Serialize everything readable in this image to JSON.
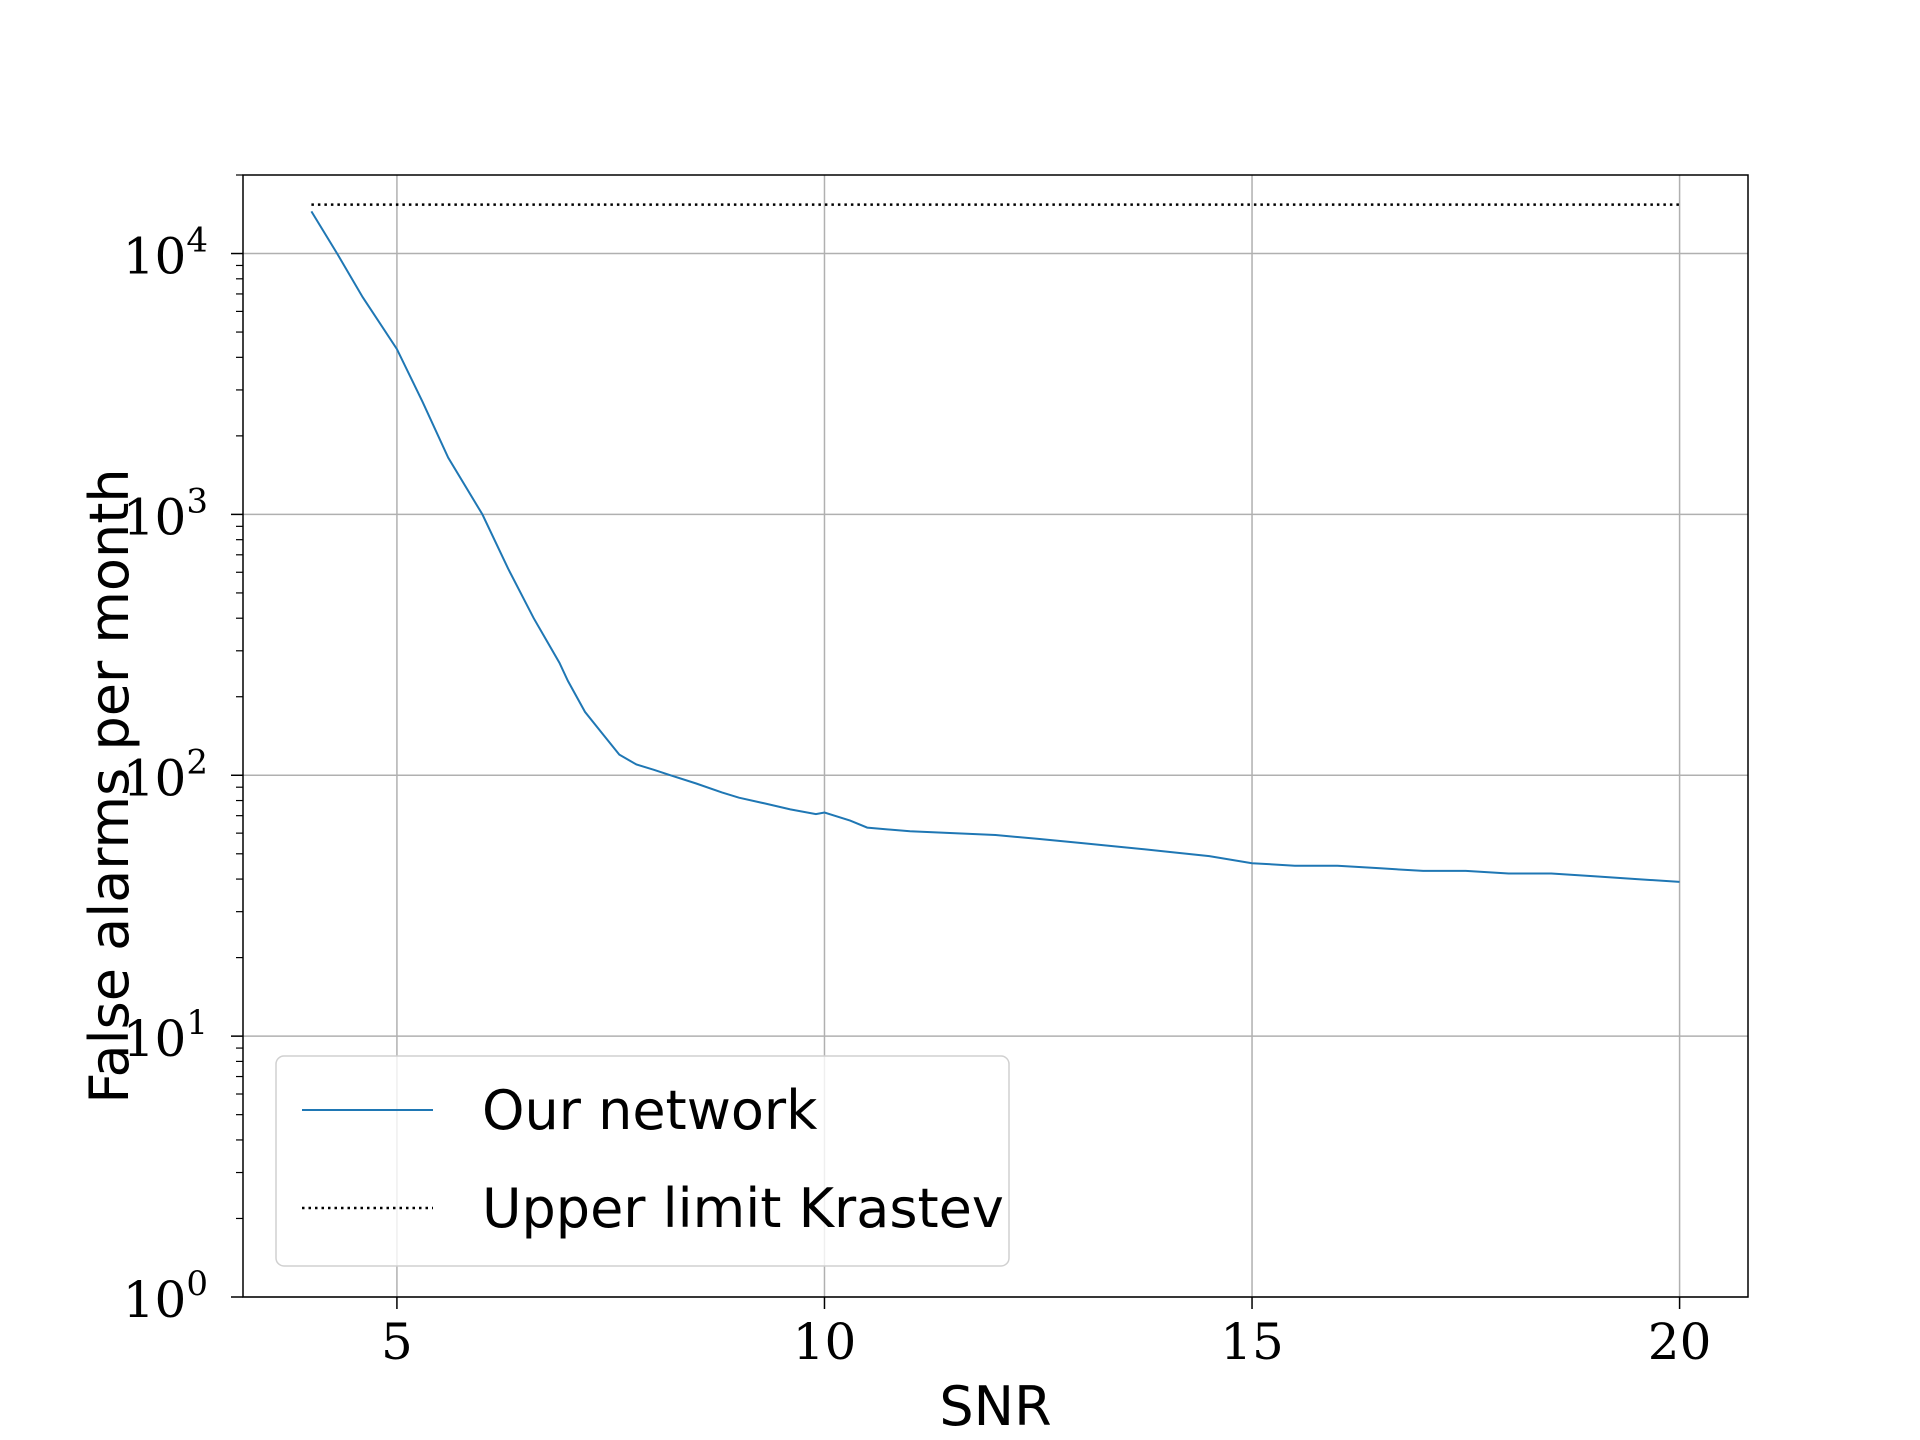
{
  "chart_data": {
    "type": "line",
    "title": "",
    "xlabel": "SNR",
    "ylabel": "False alarms per month",
    "xlim": [
      3.2,
      20.8
    ],
    "ylim": [
      1,
      20000
    ],
    "yscale": "log",
    "xticks": [
      5,
      10,
      15,
      20
    ],
    "xtick_labels": [
      "5",
      "10",
      "15",
      "20"
    ],
    "yticks": [
      1,
      10,
      100,
      1000,
      10000
    ],
    "ytick_base": "10",
    "ytick_exponents": [
      "0",
      "1",
      "2",
      "3",
      "4"
    ],
    "grid": true,
    "legend_position": "lower-left",
    "series": [
      {
        "name": "Our network",
        "color": "#1f77b4",
        "style": "solid",
        "x": [
          4.0,
          4.3,
          4.6,
          5.0,
          5.3,
          5.6,
          6.0,
          6.3,
          6.6,
          6.9,
          7.0,
          7.2,
          7.4,
          7.6,
          7.8,
          8.0,
          8.2,
          8.5,
          8.8,
          9.0,
          9.3,
          9.6,
          9.9,
          10.0,
          10.3,
          10.5,
          11.0,
          11.5,
          12.0,
          12.5,
          13.0,
          13.5,
          14.0,
          14.5,
          15.0,
          15.5,
          16.0,
          16.5,
          17.0,
          17.5,
          18.0,
          18.5,
          19.0,
          19.5,
          20.0
        ],
        "y": [
          14500,
          10000,
          6800,
          4300,
          2700,
          1650,
          1000,
          620,
          400,
          270,
          230,
          175,
          145,
          120,
          110,
          105,
          100,
          93,
          86,
          82,
          78,
          74,
          71,
          72,
          67,
          63,
          61,
          60,
          59,
          57,
          55,
          53,
          51,
          49,
          46,
          45,
          45,
          44,
          43,
          43,
          42,
          42,
          41,
          40,
          39
        ]
      },
      {
        "name": "Upper limit Krastev",
        "color": "#000000",
        "style": "dotted",
        "x": [
          4.0,
          20.0
        ],
        "y": [
          15400,
          15400
        ]
      }
    ]
  }
}
